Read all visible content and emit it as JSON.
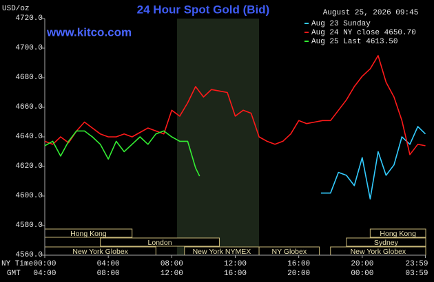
{
  "chart_data": {
    "type": "line",
    "title": "24 Hour Spot Gold (Bid)",
    "site": "www.kitco.com",
    "date": "August 25, 2026 09:45",
    "y_label": "USD/oz",
    "x_label": "NY Time",
    "x2_label": "GMT",
    "xlim": [
      0,
      24
    ],
    "ylim": [
      4560,
      4720
    ],
    "yticks": [
      {
        "value": 4560,
        "label": "4560.0"
      },
      {
        "value": 4580,
        "label": "4580.0"
      },
      {
        "value": 4600,
        "label": "4600.0"
      },
      {
        "value": 4620,
        "label": "4620.0"
      },
      {
        "value": 4640,
        "label": "4640.0"
      },
      {
        "value": 4660,
        "label": "4660.0"
      },
      {
        "value": 4680,
        "label": "4680.0"
      },
      {
        "value": 4700,
        "label": "4700.0"
      },
      {
        "value": 4720,
        "label": "4720.0"
      }
    ],
    "xticks": [
      {
        "value": 0,
        "label": "00:00"
      },
      {
        "value": 4,
        "label": "04:00"
      },
      {
        "value": 8,
        "label": "08:00"
      },
      {
        "value": 12,
        "label": "12:00"
      },
      {
        "value": 16,
        "label": "16:00"
      },
      {
        "value": 20,
        "label": "20:00"
      },
      {
        "value": 23.98,
        "label": "23:59"
      }
    ],
    "x2ticks": [
      {
        "value": 0,
        "label": "04:00"
      },
      {
        "value": 4,
        "label": "08:00"
      },
      {
        "value": 8,
        "label": "12:00"
      },
      {
        "value": 12,
        "label": "16:00"
      },
      {
        "value": 16,
        "label": "20:00"
      },
      {
        "value": 20,
        "label": "00:00"
      },
      {
        "value": 23.98,
        "label": "03:59"
      }
    ],
    "legend": "upper right",
    "shade": [
      8.33,
      13.5
    ],
    "sessions": [
      {
        "name": "Hong Kong",
        "start": 0,
        "end": 5.5,
        "row": 0
      },
      {
        "name": "London",
        "start": 3.5,
        "end": 11,
        "row": 1
      },
      {
        "name": "New York Globex",
        "start": 0,
        "end": 7,
        "row": 2
      },
      {
        "name": "New York NYMEX",
        "start": 8.8,
        "end": 13.5,
        "row": 2
      },
      {
        "name": "NY Globex",
        "start": 13.5,
        "end": 17.3,
        "row": 2
      },
      {
        "name": "Hong Kong",
        "start": 20.5,
        "end": 24,
        "row": 0
      },
      {
        "name": "Sydney",
        "start": 19,
        "end": 24,
        "row": 1
      },
      {
        "name": "New York Globex",
        "start": 18,
        "end": 24,
        "row": 2
      }
    ],
    "series": [
      {
        "name": "Aug 23 Sunday",
        "color": "#33ccff",
        "x": [
          17.4,
          18,
          18.5,
          19,
          19.5,
          20,
          20.5,
          21,
          21.5,
          22,
          22.5,
          23,
          23.5,
          23.98
        ],
        "values": [
          4602,
          4602,
          4616,
          4614,
          4607,
          4626,
          4598,
          4630,
          4614,
          4621,
          4640,
          4635,
          4647,
          4642
        ]
      },
      {
        "name": "Aug 24 NY close 4650.70",
        "color": "#ff1a1a",
        "x": [
          0,
          0.5,
          1,
          1.5,
          2,
          2.5,
          3,
          3.5,
          4,
          4.5,
          5,
          5.5,
          6,
          6.5,
          7,
          7.5,
          8,
          8.5,
          9,
          9.5,
          10,
          10.5,
          11,
          11.5,
          12,
          12.5,
          13,
          13.5,
          14,
          14.5,
          15,
          15.5,
          16,
          16.5,
          17,
          17.5,
          18,
          18.5,
          19,
          19.5,
          20,
          20.5,
          21,
          21.5,
          22,
          22.5,
          23,
          23.5,
          23.98
        ],
        "values": [
          4637,
          4635,
          4640,
          4636,
          4644,
          4650,
          4646,
          4642,
          4640,
          4640,
          4642,
          4640,
          4643,
          4646,
          4644,
          4642,
          4658,
          4654,
          4663,
          4674,
          4667,
          4672,
          4671,
          4670,
          4654,
          4658,
          4656,
          4640,
          4637,
          4635,
          4637,
          4642,
          4651,
          4649,
          4650,
          4651,
          4651,
          4658,
          4665,
          4674,
          4681,
          4686,
          4695,
          4677,
          4667,
          4651,
          4628,
          4635,
          4634
        ]
      },
      {
        "name": "Aug 25 Last 4613.50",
        "color": "#33ee33",
        "x": [
          0,
          0.5,
          1,
          1.5,
          2,
          2.5,
          3,
          3.5,
          4,
          4.5,
          5,
          5.5,
          6,
          6.5,
          7,
          7.5,
          8,
          8.5,
          9,
          9.5,
          9.75
        ],
        "values": [
          4634,
          4637,
          4627,
          4637,
          4644,
          4644,
          4640,
          4635,
          4625,
          4637,
          4630,
          4635,
          4640,
          4635,
          4642,
          4644,
          4640,
          4637,
          4637,
          4619,
          4613.5
        ]
      }
    ]
  }
}
